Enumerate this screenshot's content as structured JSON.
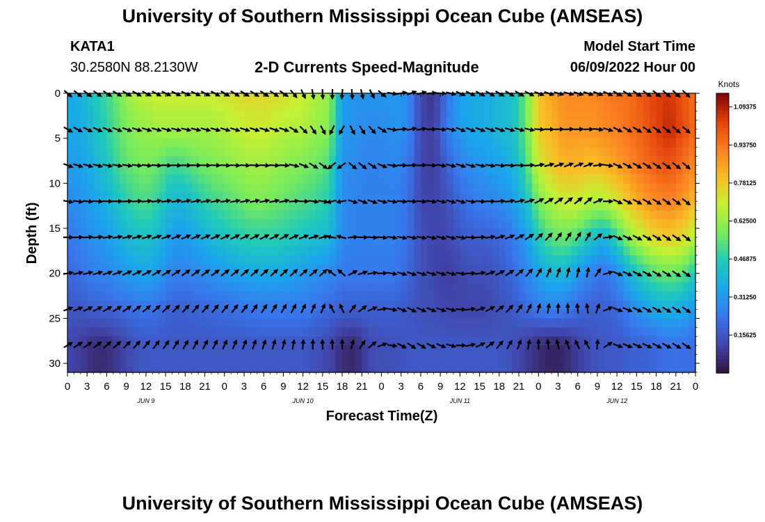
{
  "header": {
    "title": "University of Southern Mississippi Ocean Cube (AMSEAS)",
    "station": "KATA1",
    "coordinates": "30.2580N  88.2130W",
    "plot_title": "2-D Currents Speed-Magnitude",
    "model_start_label": "Model Start Time",
    "model_start_value": "06/09/2022 Hour 00"
  },
  "footer": {
    "title": "University of Southern Mississippi Ocean Cube (AMSEAS)"
  },
  "chart_data": {
    "type": "heatmap",
    "title": "2-D Currents Speed-Magnitude",
    "xlabel": "Forecast Time(Z)",
    "ylabel": "Depth (ft)",
    "colorbar_label": "Knots",
    "xlim": [
      0,
      96
    ],
    "ylim": [
      31,
      0
    ],
    "x_tick_hours": [
      0,
      3,
      6,
      9,
      12,
      15,
      18,
      21,
      24,
      27,
      30,
      33,
      36,
      39,
      42,
      45,
      48,
      51,
      54,
      57,
      60,
      63,
      66,
      69,
      72,
      75,
      78,
      81,
      84,
      87,
      90,
      93,
      96
    ],
    "x_tick_labels": [
      "0",
      "3",
      "6",
      "9",
      "12",
      "15",
      "18",
      "21",
      "0",
      "3",
      "6",
      "9",
      "12",
      "15",
      "18",
      "21",
      "0",
      "3",
      "6",
      "9",
      "12",
      "15",
      "18",
      "21",
      "0",
      "3",
      "6",
      "9",
      "12",
      "15",
      "18",
      "21",
      "0"
    ],
    "day_labels": [
      {
        "hour": 12,
        "text": "JUN 9"
      },
      {
        "hour": 36,
        "text": "JUN 10"
      },
      {
        "hour": 60,
        "text": "JUN 11"
      },
      {
        "hour": 84,
        "text": "JUN 12"
      }
    ],
    "y_ticks": [
      0,
      5,
      10,
      15,
      20,
      25,
      30
    ],
    "y_tick_labels": [
      "0",
      "5",
      "10",
      "15",
      "20",
      "25",
      "30"
    ],
    "colorbar_ticks": [
      0.15625,
      0.3125,
      0.46875,
      0.625,
      0.78125,
      0.9375,
      1.09375
    ],
    "colorbar_tick_labels": [
      "0.15625",
      "0.31250",
      "0.46875",
      "0.62500",
      "0.78125",
      "0.93750",
      "1.09375"
    ],
    "color_range": [
      0,
      1.15
    ],
    "depth_levels_ft": [
      0,
      4,
      8,
      12,
      16,
      20,
      24,
      28
    ],
    "time_points_h": [
      0,
      2,
      4,
      6,
      8,
      10,
      12,
      14,
      16,
      18,
      20,
      22,
      24,
      26,
      28,
      30,
      32,
      34,
      36,
      38,
      40,
      42,
      44,
      46,
      48,
      50,
      52,
      54,
      56,
      58,
      60,
      62,
      64,
      66,
      68,
      70,
      72,
      74,
      76,
      78,
      80,
      82,
      84,
      86,
      88,
      90,
      92,
      94,
      96
    ],
    "speed_knots": [
      [
        0.35,
        0.38,
        0.45,
        0.5,
        0.58,
        0.66,
        0.68,
        0.7,
        0.7,
        0.7,
        0.7,
        0.7,
        0.72,
        0.74,
        0.75,
        0.75,
        0.74,
        0.72,
        0.7,
        0.66,
        0.62,
        0.32,
        0.3,
        0.3,
        0.3,
        0.32,
        0.28,
        0.12,
        0.08,
        0.22,
        0.34,
        0.36,
        0.36,
        0.4,
        0.42,
        0.55,
        0.8,
        0.85,
        0.9,
        0.9,
        0.9,
        0.92,
        0.95,
        0.95,
        1.0,
        1.03,
        1.05,
        1.0,
        0.95
      ],
      [
        0.35,
        0.36,
        0.42,
        0.48,
        0.55,
        0.6,
        0.62,
        0.64,
        0.64,
        0.64,
        0.64,
        0.64,
        0.66,
        0.68,
        0.7,
        0.7,
        0.68,
        0.66,
        0.66,
        0.62,
        0.6,
        0.32,
        0.3,
        0.28,
        0.28,
        0.3,
        0.28,
        0.12,
        0.1,
        0.25,
        0.32,
        0.36,
        0.36,
        0.4,
        0.42,
        0.55,
        0.78,
        0.82,
        0.88,
        0.88,
        0.88,
        0.9,
        0.92,
        0.95,
        0.98,
        1.03,
        1.08,
        1.02,
        0.95
      ],
      [
        0.32,
        0.33,
        0.38,
        0.44,
        0.52,
        0.56,
        0.58,
        0.55,
        0.5,
        0.52,
        0.56,
        0.58,
        0.6,
        0.62,
        0.64,
        0.64,
        0.62,
        0.6,
        0.58,
        0.56,
        0.52,
        0.3,
        0.28,
        0.26,
        0.26,
        0.28,
        0.24,
        0.12,
        0.1,
        0.18,
        0.26,
        0.3,
        0.32,
        0.34,
        0.38,
        0.5,
        0.7,
        0.78,
        0.82,
        0.82,
        0.8,
        0.82,
        0.86,
        0.9,
        0.95,
        0.98,
        1.0,
        0.95,
        0.9
      ],
      [
        0.28,
        0.3,
        0.34,
        0.38,
        0.45,
        0.5,
        0.52,
        0.48,
        0.4,
        0.4,
        0.46,
        0.5,
        0.52,
        0.55,
        0.58,
        0.58,
        0.56,
        0.54,
        0.52,
        0.5,
        0.46,
        0.28,
        0.26,
        0.26,
        0.26,
        0.26,
        0.22,
        0.12,
        0.12,
        0.14,
        0.2,
        0.24,
        0.26,
        0.28,
        0.32,
        0.42,
        0.58,
        0.66,
        0.7,
        0.7,
        0.66,
        0.66,
        0.72,
        0.8,
        0.86,
        0.9,
        0.92,
        0.88,
        0.8
      ],
      [
        0.24,
        0.26,
        0.3,
        0.32,
        0.38,
        0.42,
        0.44,
        0.4,
        0.32,
        0.32,
        0.36,
        0.4,
        0.44,
        0.46,
        0.48,
        0.48,
        0.48,
        0.46,
        0.44,
        0.42,
        0.4,
        0.28,
        0.26,
        0.26,
        0.26,
        0.26,
        0.22,
        0.14,
        0.12,
        0.12,
        0.16,
        0.18,
        0.18,
        0.2,
        0.24,
        0.32,
        0.46,
        0.54,
        0.56,
        0.52,
        0.44,
        0.38,
        0.5,
        0.62,
        0.7,
        0.76,
        0.78,
        0.75,
        0.66
      ],
      [
        0.2,
        0.22,
        0.26,
        0.27,
        0.3,
        0.33,
        0.35,
        0.32,
        0.26,
        0.26,
        0.28,
        0.3,
        0.32,
        0.34,
        0.36,
        0.36,
        0.36,
        0.34,
        0.32,
        0.3,
        0.28,
        0.24,
        0.24,
        0.24,
        0.24,
        0.24,
        0.2,
        0.14,
        0.12,
        0.1,
        0.12,
        0.14,
        0.14,
        0.16,
        0.2,
        0.26,
        0.34,
        0.4,
        0.4,
        0.32,
        0.26,
        0.22,
        0.28,
        0.4,
        0.48,
        0.54,
        0.56,
        0.54,
        0.44
      ],
      [
        0.16,
        0.16,
        0.18,
        0.19,
        0.2,
        0.22,
        0.23,
        0.21,
        0.18,
        0.18,
        0.19,
        0.2,
        0.21,
        0.22,
        0.23,
        0.24,
        0.24,
        0.24,
        0.24,
        0.22,
        0.2,
        0.18,
        0.18,
        0.18,
        0.18,
        0.18,
        0.16,
        0.14,
        0.14,
        0.12,
        0.12,
        0.12,
        0.12,
        0.14,
        0.16,
        0.2,
        0.24,
        0.26,
        0.24,
        0.2,
        0.18,
        0.18,
        0.2,
        0.26,
        0.32,
        0.36,
        0.38,
        0.36,
        0.3
      ],
      [
        0.12,
        0.1,
        0.06,
        0.06,
        0.1,
        0.14,
        0.16,
        0.16,
        0.16,
        0.16,
        0.16,
        0.16,
        0.16,
        0.16,
        0.16,
        0.16,
        0.16,
        0.16,
        0.16,
        0.14,
        0.12,
        0.06,
        0.05,
        0.12,
        0.14,
        0.14,
        0.16,
        0.16,
        0.16,
        0.16,
        0.16,
        0.16,
        0.16,
        0.16,
        0.14,
        0.1,
        0.06,
        0.04,
        0.05,
        0.1,
        0.14,
        0.16,
        0.16,
        0.18,
        0.18,
        0.2,
        0.22,
        0.22,
        0.2
      ]
    ],
    "arrow_time_points_h": [
      0,
      1.5,
      3,
      4.5,
      6,
      7.5,
      9,
      10.5,
      12,
      13.5,
      15,
      16.5,
      18,
      19.5,
      21,
      22.5,
      24,
      25.5,
      27,
      28.5,
      30,
      31.5,
      33,
      34.5,
      36,
      37.5,
      39,
      40.5,
      42,
      43.5,
      45,
      46.5,
      48,
      49.5,
      51,
      52.5,
      54,
      55.5,
      57,
      58.5,
      60,
      61.5,
      63,
      64.5,
      66,
      67.5,
      69,
      70.5,
      72,
      73.5,
      75,
      76.5,
      78,
      79.5,
      81,
      82.5,
      84,
      85.5,
      87,
      88.5,
      90,
      91.5,
      93,
      94.5
    ],
    "arrow_depths_ft": [
      0,
      4,
      8,
      12,
      16,
      20,
      24,
      28
    ],
    "arrow_direction_keyframes": {
      "hours": [
        0,
        9,
        18,
        24,
        33,
        36,
        38,
        40,
        42,
        46,
        48,
        50,
        52,
        54,
        58,
        60,
        66,
        70,
        72,
        76,
        80,
        84,
        88,
        92,
        96
      ],
      "surface_deg": [
        130,
        120,
        115,
        120,
        125,
        155,
        175,
        180,
        185,
        160,
        130,
        90,
        70,
        75,
        100,
        115,
        120,
        120,
        110,
        105,
        110,
        118,
        125,
        130,
        135
      ],
      "bottom_deg": [
        60,
        45,
        30,
        25,
        15,
        5,
        0,
        355,
        0,
        45,
        70,
        110,
        125,
        120,
        110,
        90,
        40,
        15,
        0,
        340,
        330,
        110,
        115,
        120,
        125
      ]
    }
  }
}
